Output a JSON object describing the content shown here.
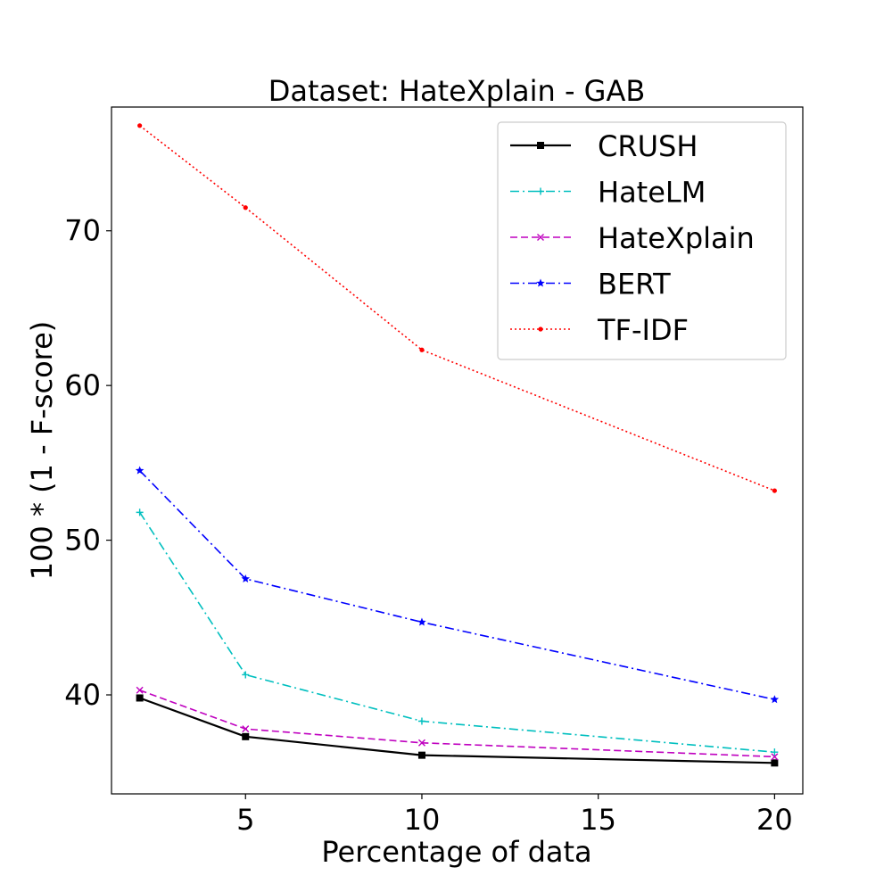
{
  "chart_data": {
    "type": "line",
    "title": "Dataset: HateXplain - GAB",
    "xlabel": "Percentage of data",
    "ylabel": "100 * (1 - F-score)",
    "x": [
      2,
      5,
      10,
      20
    ],
    "xlim": [
      1.2,
      20.8
    ],
    "ylim": [
      33.6,
      78.0
    ],
    "xticks": [
      5,
      10,
      15,
      20
    ],
    "yticks": [
      40,
      50,
      60,
      70
    ],
    "grid": false,
    "legend_position": "top-right",
    "series": [
      {
        "name": "CRUSH",
        "values": [
          39.8,
          37.3,
          36.1,
          35.6
        ],
        "color": "#000000",
        "dash": "solid",
        "marker": "square"
      },
      {
        "name": "HateLM",
        "values": [
          51.8,
          41.3,
          38.3,
          36.3
        ],
        "color": "#00bfbf",
        "dash": "dashdot",
        "marker": "plus"
      },
      {
        "name": "HateXplain",
        "values": [
          40.3,
          37.8,
          36.9,
          36.0
        ],
        "color": "#bf00bf",
        "dash": "dashed",
        "marker": "x"
      },
      {
        "name": "BERT",
        "values": [
          54.5,
          47.5,
          44.7,
          39.7
        ],
        "color": "#0000ff",
        "dash": "dashdot",
        "marker": "star"
      },
      {
        "name": "TF-IDF",
        "values": [
          76.8,
          71.5,
          62.3,
          53.2
        ],
        "color": "#ff0000",
        "dash": "dotted",
        "marker": "dot"
      }
    ]
  }
}
